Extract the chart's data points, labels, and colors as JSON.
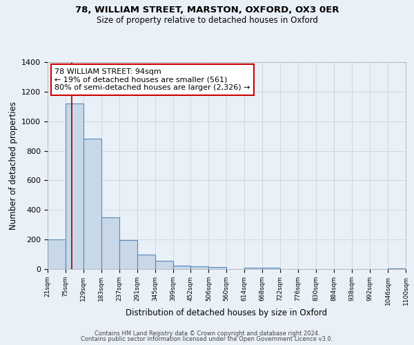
{
  "title1": "78, WILLIAM STREET, MARSTON, OXFORD, OX3 0ER",
  "title2": "Size of property relative to detached houses in Oxford",
  "xlabel": "Distribution of detached houses by size in Oxford",
  "ylabel": "Number of detached properties",
  "bin_edges": [
    21,
    75,
    129,
    183,
    237,
    291,
    345,
    399,
    452,
    506,
    560,
    614,
    668,
    722,
    776,
    830,
    884,
    938,
    992,
    1046,
    1100
  ],
  "bin_labels": [
    "21sqm",
    "75sqm",
    "129sqm",
    "183sqm",
    "237sqm",
    "291sqm",
    "345sqm",
    "399sqm",
    "452sqm",
    "506sqm",
    "560sqm",
    "614sqm",
    "668sqm",
    "722sqm",
    "776sqm",
    "830sqm",
    "884sqm",
    "938sqm",
    "992sqm",
    "1046sqm",
    "1100sqm"
  ],
  "bar_heights": [
    200,
    1120,
    880,
    350,
    195,
    100,
    55,
    25,
    18,
    12,
    0,
    10,
    8,
    0,
    0,
    0,
    0,
    0,
    0,
    5
  ],
  "bar_color": "#c8d8e8",
  "bar_edge_color": "#5588bb",
  "vline_x": 94,
  "vline_color": "#990000",
  "annotation_line1": "78 WILLIAM STREET: 94sqm",
  "annotation_line2": "← 19% of detached houses are smaller (561)",
  "annotation_line3": "80% of semi-detached houses are larger (2,326) →",
  "annotation_box_color": "#ffffff",
  "annotation_box_edge_color": "#cc0000",
  "ylim": [
    0,
    1400
  ],
  "yticks": [
    0,
    200,
    400,
    600,
    800,
    1000,
    1200,
    1400
  ],
  "background_color": "#eaf0f8",
  "footer1": "Contains HM Land Registry data © Crown copyright and database right 2024.",
  "footer2": "Contains public sector information licensed under the Open Government Licence v3.0."
}
